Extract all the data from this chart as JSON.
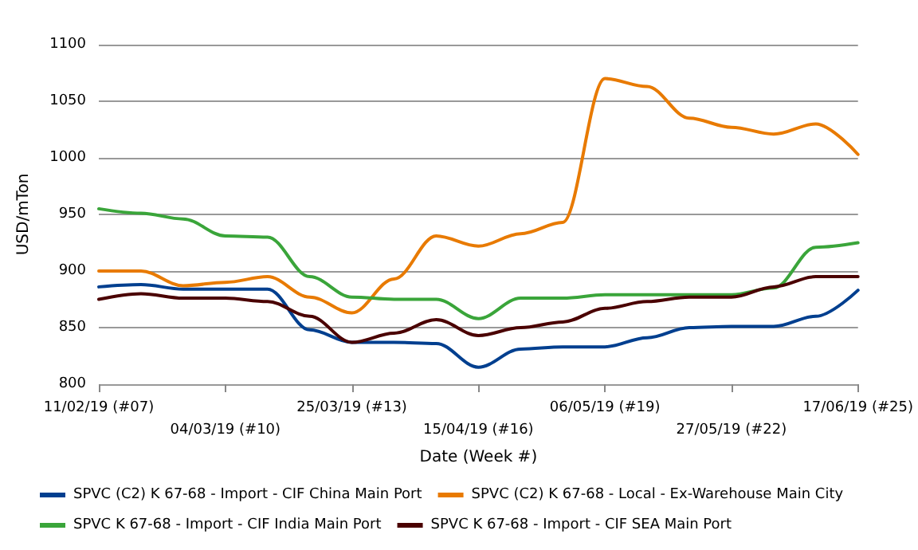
{
  "chart_data": {
    "type": "line",
    "xlabel": "Date (Week #)",
    "ylabel": "USD/mTon",
    "categories": [
      "11/02/19 (#07)",
      null,
      null,
      "04/03/19 (#10)",
      null,
      null,
      "25/03/19 (#13)",
      null,
      null,
      "15/04/19 (#16)",
      null,
      null,
      "06/05/19 (#19)",
      null,
      null,
      "27/05/19 (#22)",
      null,
      null,
      "17/06/19 (#25)"
    ],
    "series": [
      {
        "name": "SPVC (C2) K 67-68 - Import - CIF China Main Port",
        "color": "#003f8f",
        "values": [
          886,
          888,
          884,
          884,
          884,
          848,
          837,
          837,
          836,
          815,
          831,
          833,
          833,
          841,
          850,
          851,
          851,
          860,
          883
        ]
      },
      {
        "name": "SPVC (C2) K 67-68 - Local - Ex-Warehouse Main City",
        "color": "#e87a00",
        "values": [
          900,
          900,
          887,
          890,
          895,
          877,
          863,
          893,
          931,
          922,
          933,
          943,
          1070,
          1063,
          1035,
          1027,
          1021,
          1030,
          1003
        ]
      },
      {
        "name": "SPVC K 67-68 - Import - CIF India Main Port",
        "color": "#3aa53a",
        "values": [
          955,
          951,
          946,
          931,
          930,
          895,
          877,
          875,
          875,
          858,
          876,
          876,
          879,
          879,
          879,
          879,
          885,
          921,
          925
        ]
      },
      {
        "name": "SPVC K 67-68 - Import - CIF SEA Main Port",
        "color": "#4a0000",
        "values": [
          875,
          880,
          876,
          876,
          873,
          860,
          837,
          845,
          857,
          843,
          850,
          855,
          867,
          873,
          877,
          877,
          886,
          895,
          895
        ]
      }
    ],
    "ylim": [
      800,
      1100
    ],
    "yticks": [
      800,
      850,
      900,
      950,
      1000,
      1050,
      1100
    ],
    "grid": "y",
    "legend": "bottom",
    "marker": "none",
    "line_style": "solid"
  }
}
